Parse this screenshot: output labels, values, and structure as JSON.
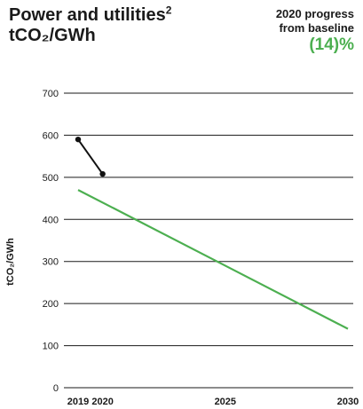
{
  "header": {
    "title_line1": "Power and utilities",
    "title_sup": "2",
    "title_line2": "tCO₂/GWh",
    "progress_label_line1": "2020 progress",
    "progress_label_line2": "from baseline",
    "progress_value": "(14)%"
  },
  "colors": {
    "actual": "#111111",
    "target": "#4caf50",
    "grid": "#1a1a1a"
  },
  "chart_data": {
    "type": "line",
    "ylabel": "tCO₂/GWh",
    "xlabel": "",
    "xlim": [
      2019,
      2030
    ],
    "ylim": [
      0,
      700
    ],
    "y_ticks": [
      0,
      100,
      200,
      300,
      400,
      500,
      600,
      700
    ],
    "x_ticks": [
      2019,
      2020,
      2025,
      2030
    ],
    "grid": true,
    "series": [
      {
        "x": [
          2019,
          2020
        ],
        "y": [
          590,
          508
        ],
        "style": "actual",
        "markers": true
      },
      {
        "x": [
          2019,
          2030
        ],
        "y": [
          470,
          140
        ],
        "style": "target",
        "markers": false
      }
    ]
  }
}
